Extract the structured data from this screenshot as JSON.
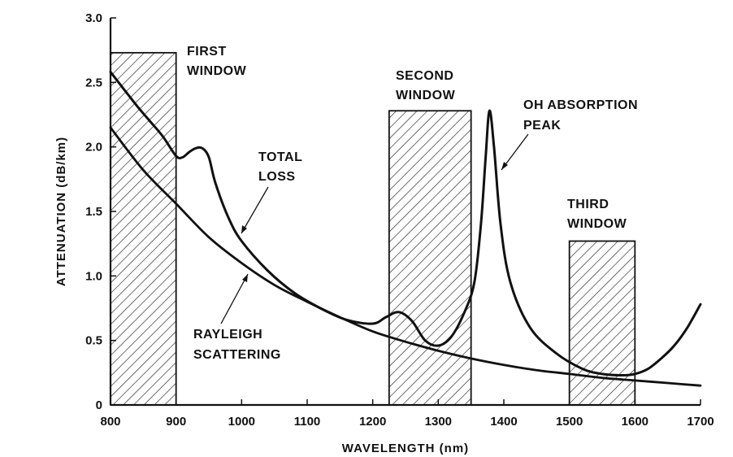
{
  "chart_data": {
    "type": "line",
    "xlabel": "WAVELENGTH (nm)",
    "ylabel": "ATTENUATION (dB/km)",
    "xlim": [
      800,
      1700
    ],
    "ylim": [
      0,
      3.0
    ],
    "x_ticks": [
      "800",
      "900",
      "1000",
      "1100",
      "1200",
      "1300",
      "1400",
      "1500",
      "1600",
      "1700"
    ],
    "y_ticks": [
      "0",
      "0.5",
      "1.0",
      "1.5",
      "2.0",
      "2.5",
      "3.0"
    ],
    "grid": false,
    "series": [
      {
        "name": "TOTAL LOSS",
        "x": [
          800,
          820,
          840,
          860,
          880,
          900,
          910,
          920,
          930,
          940,
          950,
          960,
          980,
          1000,
          1040,
          1080,
          1120,
          1160,
          1200,
          1220,
          1240,
          1260,
          1280,
          1300,
          1320,
          1340,
          1355,
          1365,
          1372,
          1378,
          1385,
          1395,
          1410,
          1440,
          1480,
          1520,
          1550,
          1580,
          1600,
          1620,
          1640,
          1660,
          1680,
          1700
        ],
        "y": [
          2.58,
          2.45,
          2.32,
          2.2,
          2.08,
          1.93,
          1.92,
          1.96,
          1.99,
          1.99,
          1.92,
          1.72,
          1.45,
          1.27,
          1.04,
          0.87,
          0.75,
          0.66,
          0.63,
          0.68,
          0.72,
          0.65,
          0.5,
          0.46,
          0.53,
          0.72,
          0.95,
          1.4,
          1.9,
          2.28,
          2.0,
          1.4,
          0.95,
          0.6,
          0.4,
          0.28,
          0.24,
          0.23,
          0.24,
          0.28,
          0.36,
          0.46,
          0.6,
          0.78
        ]
      },
      {
        "name": "RAYLEIGH SCATTERING",
        "x": [
          800,
          850,
          900,
          950,
          1000,
          1050,
          1100,
          1150,
          1200,
          1250,
          1300,
          1350,
          1400,
          1450,
          1500,
          1550,
          1600,
          1650,
          1700
        ],
        "y": [
          2.15,
          1.82,
          1.56,
          1.3,
          1.1,
          0.93,
          0.8,
          0.68,
          0.57,
          0.49,
          0.42,
          0.36,
          0.31,
          0.27,
          0.24,
          0.21,
          0.19,
          0.17,
          0.15
        ]
      }
    ],
    "windows": [
      {
        "label_line1": "FIRST",
        "label_line2": "WINDOW",
        "x_start": 800,
        "x_end": 900,
        "height": 2.73
      },
      {
        "label_line1": "SECOND",
        "label_line2": "WINDOW",
        "x_start": 1225,
        "x_end": 1350,
        "height": 2.28
      },
      {
        "label_line1": "THIRD",
        "label_line2": "WINDOW",
        "x_start": 1500,
        "x_end": 1600,
        "height": 1.27
      }
    ],
    "annotations": [
      {
        "line1": "TOTAL",
        "line2": "LOSS"
      },
      {
        "line1": "RAYLEIGH",
        "line2": "SCATTERING"
      },
      {
        "line1": "OH ABSORPTION",
        "line2": "PEAK"
      }
    ]
  }
}
